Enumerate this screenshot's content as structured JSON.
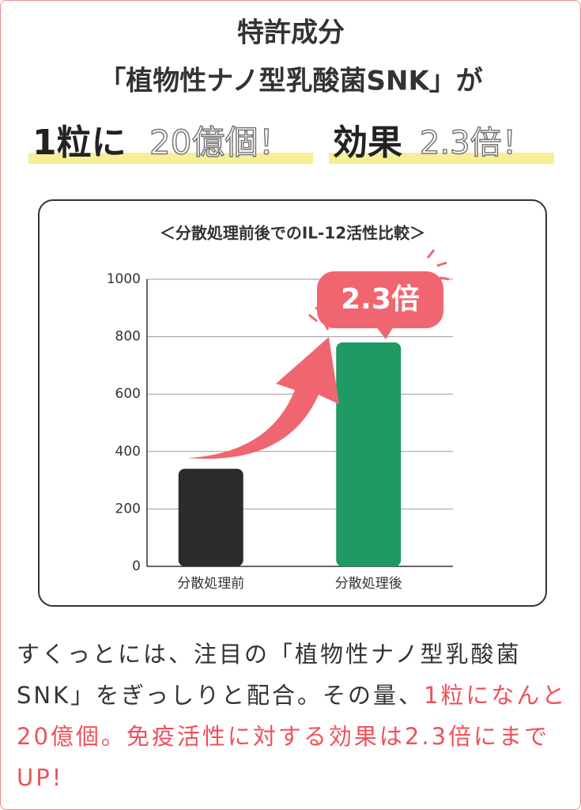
{
  "header": {
    "line1": "特許成分",
    "line2": "「植物性ナノ型乳酸菌SNK」が",
    "line3": {
      "part1": "1粒に",
      "part2": "20億個！",
      "part3": "効果",
      "part4": "2.3倍！"
    }
  },
  "chart_data": {
    "type": "bar",
    "title": "＜分散処理前後でのIL-12活性比較＞",
    "categories": [
      "分散処理前",
      "分散処理後"
    ],
    "values": [
      340,
      780
    ],
    "colors": [
      "#2b2b2b",
      "#1f9a64"
    ],
    "ylim": [
      0,
      1000
    ],
    "yticks": [
      0,
      200,
      400,
      600,
      800,
      1000
    ],
    "grid": true,
    "annotation": "2.3倍"
  },
  "body": {
    "text_normal": "すくっとには、注目の「植物性ナノ型乳酸菌SNK」をぎっしりと配合。その量、",
    "text_highlight": "1粒になんと20億個。免疫活性に対する効果は2.3倍にまでUP!"
  }
}
